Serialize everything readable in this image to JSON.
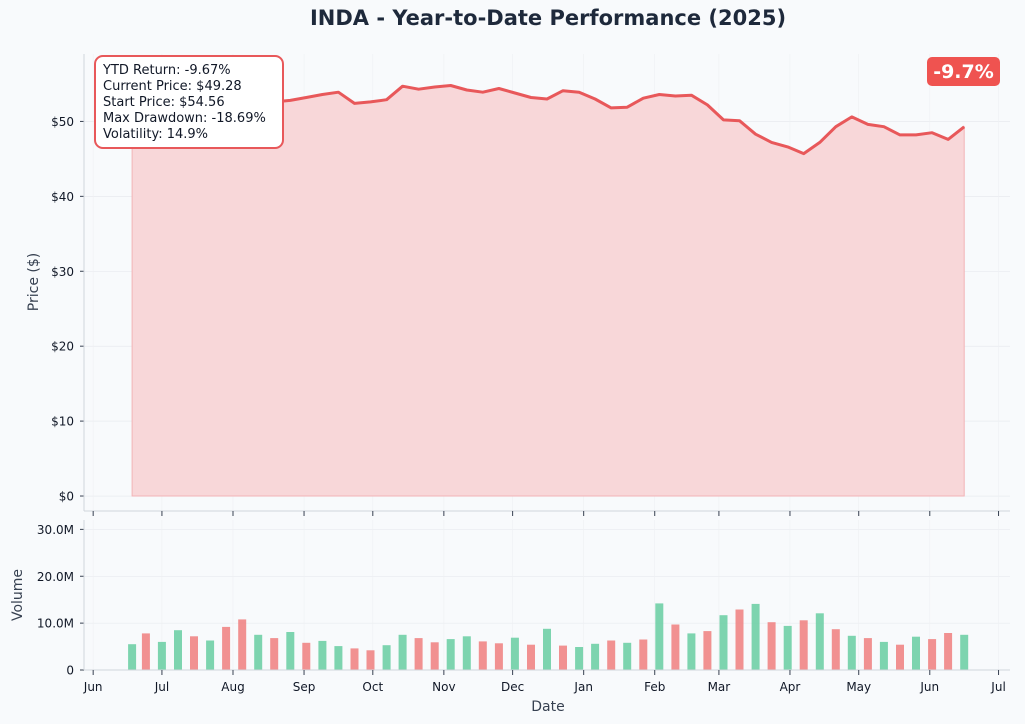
{
  "colors": {
    "background": "#f8fafc",
    "title": "#1e293b",
    "price_line": "#e8585a",
    "price_fill": "#f8d7d9",
    "volume_up": "#6fcfa6",
    "volume_down": "#ef8585",
    "badge": "#ef5350"
  },
  "chart_data": [
    {
      "type": "area",
      "title": "INDA - Year-to-Date Performance (2025)",
      "ylabel": "Price ($)",
      "xlabel": "",
      "ylim": [
        -2,
        59
      ],
      "yticks": [
        0,
        10,
        20,
        30,
        40,
        50
      ],
      "ytick_labels": [
        "$0",
        "$10",
        "$20",
        "$30",
        "$40",
        "$50"
      ],
      "grid": true,
      "badge": "-9.7%",
      "stats": [
        "YTD Return: -9.67%",
        "Current Price: $49.28",
        "Start Price: $54.56",
        "Max Drawdown: -18.69%",
        "Volatility: 14.9%"
      ],
      "series": [
        {
          "x": [
            "2024-06-18",
            "2024-06-24",
            "2024-07-01",
            "2024-07-08",
            "2024-07-15",
            "2024-07-22",
            "2024-07-29",
            "2024-08-05",
            "2024-08-12",
            "2024-08-19",
            "2024-08-26",
            "2024-09-02",
            "2024-09-09",
            "2024-09-16",
            "2024-09-23",
            "2024-09-30",
            "2024-10-07",
            "2024-10-14",
            "2024-10-21",
            "2024-10-28",
            "2024-11-04",
            "2024-11-11",
            "2024-11-18",
            "2024-11-25",
            "2024-12-02",
            "2024-12-09",
            "2024-12-16",
            "2024-12-23",
            "2024-12-30",
            "2025-01-06",
            "2025-01-13",
            "2025-01-20",
            "2025-01-27",
            "2025-02-03",
            "2025-02-10",
            "2025-02-17",
            "2025-02-24",
            "2025-03-03",
            "2025-03-10",
            "2025-03-17",
            "2025-03-24",
            "2025-03-31",
            "2025-04-07",
            "2025-04-14",
            "2025-04-21",
            "2025-04-28",
            "2025-05-05",
            "2025-05-12",
            "2025-05-19",
            "2025-05-26",
            "2025-06-02",
            "2025-06-09",
            "2025-06-16"
          ],
          "values": [
            54.56,
            54.9,
            54.3,
            53.2,
            52.4,
            52.8,
            52.3,
            53.5,
            53.1,
            52.6,
            52.8,
            53.2,
            53.6,
            53.9,
            52.4,
            52.6,
            52.9,
            54.7,
            54.3,
            54.6,
            54.8,
            54.2,
            53.9,
            54.4,
            53.8,
            53.2,
            53.0,
            54.1,
            53.9,
            53.0,
            51.8,
            51.9,
            53.1,
            53.6,
            53.4,
            53.5,
            52.2,
            50.2,
            50.1,
            48.3,
            47.2,
            46.6,
            45.7,
            47.2,
            49.3,
            50.6,
            49.6,
            49.3,
            48.2,
            48.2,
            48.5,
            47.6,
            49.28
          ]
        }
      ]
    },
    {
      "type": "bar",
      "title": "",
      "ylabel": "Volume",
      "xlabel": "Date",
      "ylim": [
        0,
        32
      ],
      "yticks": [
        0,
        10,
        20,
        30
      ],
      "ytick_labels": [
        "0",
        "10.0M",
        "20.0M",
        "30.0M"
      ],
      "x_ticks": [
        "2024-06-01",
        "2024-07-01",
        "2024-08-01",
        "2024-09-01",
        "2024-10-01",
        "2024-11-01",
        "2024-12-01",
        "2025-01-01",
        "2025-02-01",
        "2025-03-01",
        "2025-04-01",
        "2025-05-01",
        "2025-06-01",
        "2025-07-01"
      ],
      "x_tick_labels": [
        "Jun",
        "Jul",
        "Aug",
        "Sep",
        "Oct",
        "Nov",
        "Dec",
        "Jan",
        "Feb",
        "Mar",
        "Apr",
        "May",
        "Jun",
        "Jul"
      ],
      "volume_unit": "millions",
      "series": [
        {
          "x": [
            "2024-06-18",
            "2024-06-24",
            "2024-07-01",
            "2024-07-08",
            "2024-07-15",
            "2024-07-22",
            "2024-07-29",
            "2024-08-05",
            "2024-08-12",
            "2024-08-19",
            "2024-08-26",
            "2024-09-02",
            "2024-09-09",
            "2024-09-16",
            "2024-09-23",
            "2024-09-30",
            "2024-10-07",
            "2024-10-14",
            "2024-10-21",
            "2024-10-28",
            "2024-11-04",
            "2024-11-11",
            "2024-11-18",
            "2024-11-25",
            "2024-12-02",
            "2024-12-09",
            "2024-12-16",
            "2024-12-23",
            "2024-12-30",
            "2025-01-06",
            "2025-01-13",
            "2025-01-20",
            "2025-01-27",
            "2025-02-03",
            "2025-02-10",
            "2025-02-17",
            "2025-02-24",
            "2025-03-03",
            "2025-03-10",
            "2025-03-17",
            "2025-03-24",
            "2025-03-31",
            "2025-04-07",
            "2025-04-14",
            "2025-04-21",
            "2025-04-28",
            "2025-05-05",
            "2025-05-12",
            "2025-05-19",
            "2025-05-26",
            "2025-06-02",
            "2025-06-09",
            "2025-06-16"
          ],
          "values": [
            5.5,
            7.8,
            6.0,
            8.5,
            7.2,
            6.3,
            9.2,
            10.8,
            7.5,
            6.8,
            8.1,
            5.8,
            6.2,
            5.1,
            4.6,
            4.2,
            5.3,
            7.5,
            6.8,
            5.9,
            6.6,
            7.2,
            6.1,
            5.7,
            6.9,
            5.4,
            8.8,
            5.2,
            4.9,
            5.6,
            6.3,
            5.8,
            6.5,
            14.2,
            9.7,
            7.8,
            8.3,
            11.7,
            12.9,
            14.1,
            10.2,
            9.4,
            10.6,
            12.1,
            8.7,
            7.3,
            6.8,
            6.0,
            5.4,
            7.1,
            6.6,
            7.9,
            7.5
          ],
          "up": [
            true,
            false,
            true,
            true,
            false,
            true,
            false,
            false,
            true,
            false,
            true,
            false,
            true,
            true,
            false,
            false,
            true,
            true,
            false,
            false,
            true,
            true,
            false,
            false,
            true,
            false,
            true,
            false,
            true,
            true,
            false,
            true,
            false,
            true,
            false,
            true,
            false,
            true,
            false,
            true,
            false,
            true,
            false,
            true,
            false,
            true,
            false,
            true,
            false,
            true,
            false,
            false,
            true
          ]
        }
      ]
    }
  ]
}
